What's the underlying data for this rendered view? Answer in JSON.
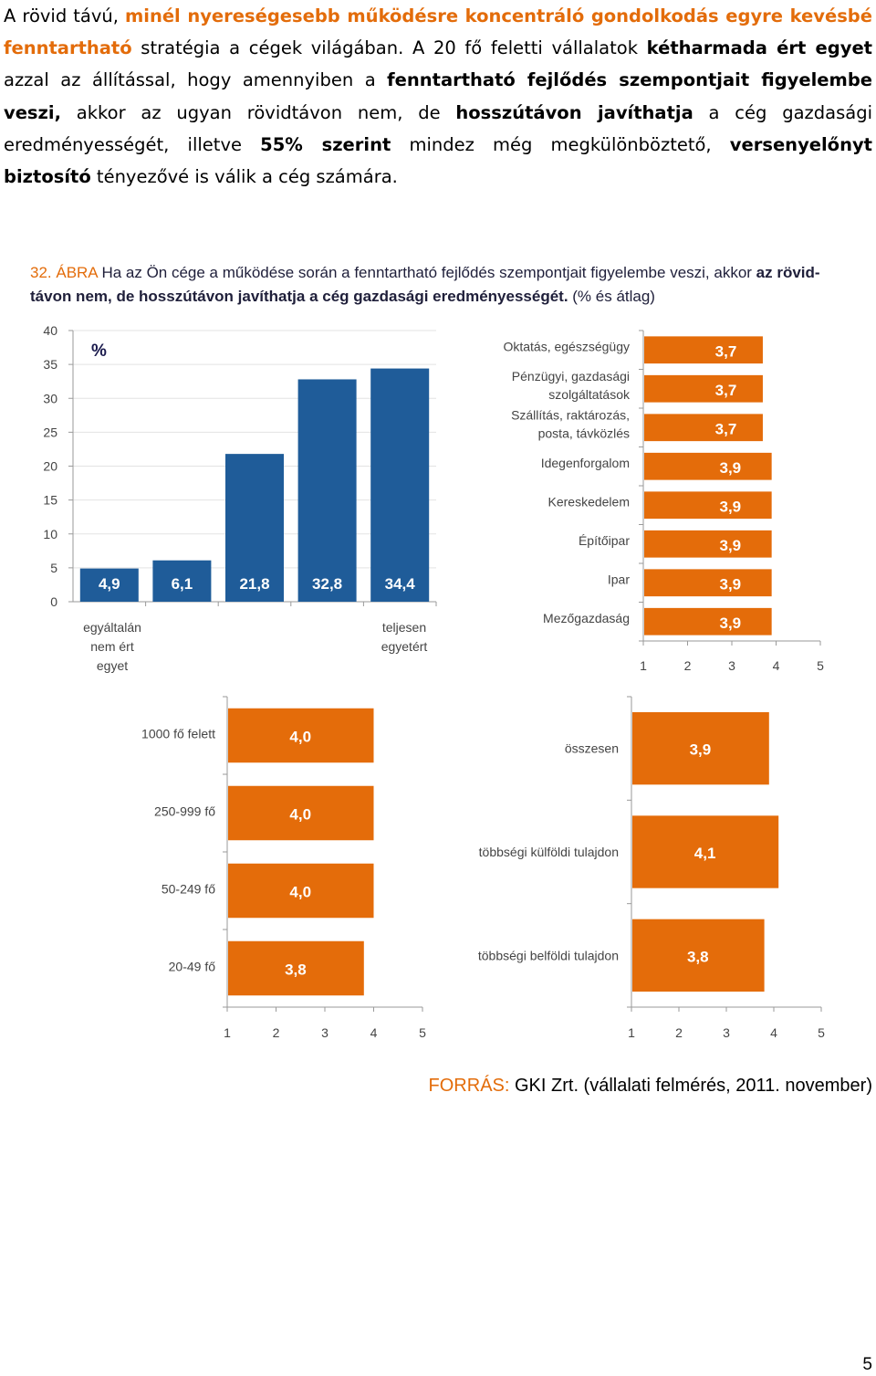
{
  "paragraph": {
    "p1": "A rövid távú, ",
    "h1": "minél nyereségesebb működésre koncentráló gondolkodás egyre kevésbé fenntartható",
    "p2": " stratégia a cégek világában. A 20 fő feletti vállalatok ",
    "b1": "kétharmada ért egyet",
    "p3": " azzal az állítással, hogy amennyiben a ",
    "b2": "fenntartható fejlődés szempontjait figyelembe veszi,",
    "p4": " akkor az ugyan rövidtávon nem, de ",
    "b3": "hosszútávon javíthatja",
    "p5": " a cég gazdasági eredményességét, illetve ",
    "b4": "55% szerint",
    "p6": " mindez még megkülönböztető, ",
    "b5": "versenyelőnyt biztosító",
    "p7": " tényezővé is válik a cég számára."
  },
  "figure": {
    "label": "32. ÁBRA",
    "title_a": " Ha az Ön cége a működése során a fenntartható fejlődés szempontjait figyelembe veszi, akkor ",
    "title_b": "az rövid-távon nem, de hosszútávon javíthatja a cég gazdasági eredményességét.",
    "title_c": " (% és átlag)"
  },
  "colors": {
    "blue": "#1f5c99",
    "orange": "#e46c0a",
    "accent_text": "#e36c0a"
  },
  "chart_data": [
    {
      "type": "bar",
      "unit_label": "%",
      "categories": [
        "1",
        "2",
        "3",
        "4",
        "5"
      ],
      "values": [
        4.9,
        6.1,
        21.8,
        32.8,
        34.4
      ],
      "value_labels": [
        "4,9",
        "6,1",
        "21,8",
        "32,8",
        "34,4"
      ],
      "ylim": [
        0,
        40
      ],
      "y_ticks": [
        "0",
        "5",
        "10",
        "15",
        "20",
        "25",
        "30",
        "35",
        "40"
      ],
      "x_label_left": "egyáltalán nem ért egyet",
      "x_label_right": "teljesen egyetért",
      "color": "#1f5c99"
    },
    {
      "type": "bar",
      "orientation": "horizontal",
      "categories": [
        "Oktatás, egészségügy",
        "Pénzügyi, gazdasági szolgáltatások",
        "Szállítás, raktározás, posta, távközlés",
        "Idegenforgalom",
        "Kereskedelem",
        "Építőipar",
        "Ipar",
        "Mezőgazdaság"
      ],
      "values": [
        3.7,
        3.7,
        3.7,
        3.9,
        3.9,
        3.9,
        3.9,
        3.9
      ],
      "value_labels": [
        "3,7",
        "3,7",
        "3,7",
        "3,9",
        "3,9",
        "3,9",
        "3,9",
        "3,9"
      ],
      "xlim": [
        1,
        5
      ],
      "x_ticks": [
        "1",
        "2",
        "3",
        "4",
        "5"
      ],
      "color": "#e46c0a"
    },
    {
      "type": "bar",
      "orientation": "horizontal",
      "categories": [
        "1000 fő felett",
        "250-999 fő",
        "50-249 fő",
        "20-49 fő"
      ],
      "values": [
        4.0,
        4.0,
        4.0,
        3.8
      ],
      "value_labels": [
        "4,0",
        "4,0",
        "4,0",
        "3,8"
      ],
      "xlim": [
        1,
        5
      ],
      "x_ticks": [
        "1",
        "2",
        "3",
        "4",
        "5"
      ],
      "color": "#e46c0a"
    },
    {
      "type": "bar",
      "orientation": "horizontal",
      "categories": [
        "összesen",
        "többségi külföldi tulajdon",
        "többségi belföldi tulajdon"
      ],
      "values": [
        3.9,
        4.1,
        3.8
      ],
      "value_labels": [
        "3,9",
        "4,1",
        "3,8"
      ],
      "xlim": [
        1,
        5
      ],
      "x_ticks": [
        "1",
        "2",
        "3",
        "4",
        "5"
      ],
      "color": "#e46c0a"
    }
  ],
  "source": {
    "label": "FORRÁS:",
    "text": " GKI Zrt. (vállalati felmérés, 2011. november)"
  },
  "page_number": "5"
}
